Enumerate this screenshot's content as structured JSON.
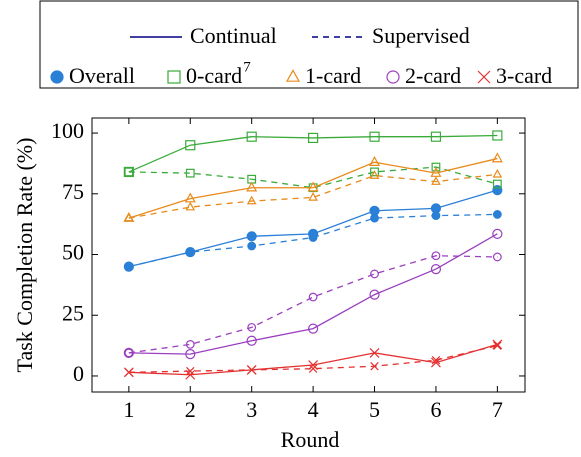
{
  "chart_data": {
    "type": "line",
    "xlabel": "Round",
    "ylabel": "Task Completion Rate (%)",
    "x": [
      1,
      2,
      3,
      4,
      5,
      6,
      7
    ],
    "xlim": [
      0.4,
      7.45
    ],
    "xticks": [
      1,
      2,
      3,
      4,
      5,
      6,
      7
    ],
    "ylim": [
      -6.6,
      106.2
    ],
    "yticks": [
      0,
      25,
      50,
      75,
      100
    ],
    "grid": false,
    "style_labels": {
      "values": "Continual",
      "supervised_values": "Supervised"
    },
    "style_color": "#000080",
    "groups": [
      {
        "name": "Overall",
        "color": "#2a7fd6",
        "marker": "filled-circle",
        "values": [
          45,
          51,
          57.5,
          58.5,
          68,
          69,
          76.5
        ],
        "supervised_values": [
          45,
          51,
          53.5,
          57,
          65,
          66,
          66.5
        ]
      },
      {
        "name": "0-card",
        "footnote": "7",
        "color": "#3aab3a",
        "marker": "square",
        "values": [
          84,
          95,
          98.5,
          98,
          98.5,
          98.5,
          99
        ],
        "supervised_values": [
          84,
          83.5,
          81,
          77.5,
          84,
          86,
          79
        ]
      },
      {
        "name": "1-card",
        "color": "#e88a1a",
        "marker": "triangle",
        "values": [
          65,
          73,
          77.5,
          77.5,
          88,
          83.5,
          89.5
        ],
        "supervised_values": [
          65,
          69.5,
          72,
          73.5,
          82.5,
          80,
          83
        ]
      },
      {
        "name": "2-card",
        "color": "#9a3fbf",
        "marker": "circle",
        "values": [
          9.5,
          9,
          14.5,
          19.5,
          33.5,
          44,
          58.5
        ],
        "supervised_values": [
          9.5,
          13,
          20,
          32.5,
          42,
          49.5,
          49
        ]
      },
      {
        "name": "3-card",
        "color": "#e53030",
        "marker": "cross",
        "values": [
          1.5,
          0.5,
          2.5,
          4.5,
          9.5,
          5.5,
          13
        ],
        "supervised_values": [
          1.5,
          2,
          2.5,
          3,
          4,
          6.5,
          12.5
        ]
      }
    ]
  }
}
